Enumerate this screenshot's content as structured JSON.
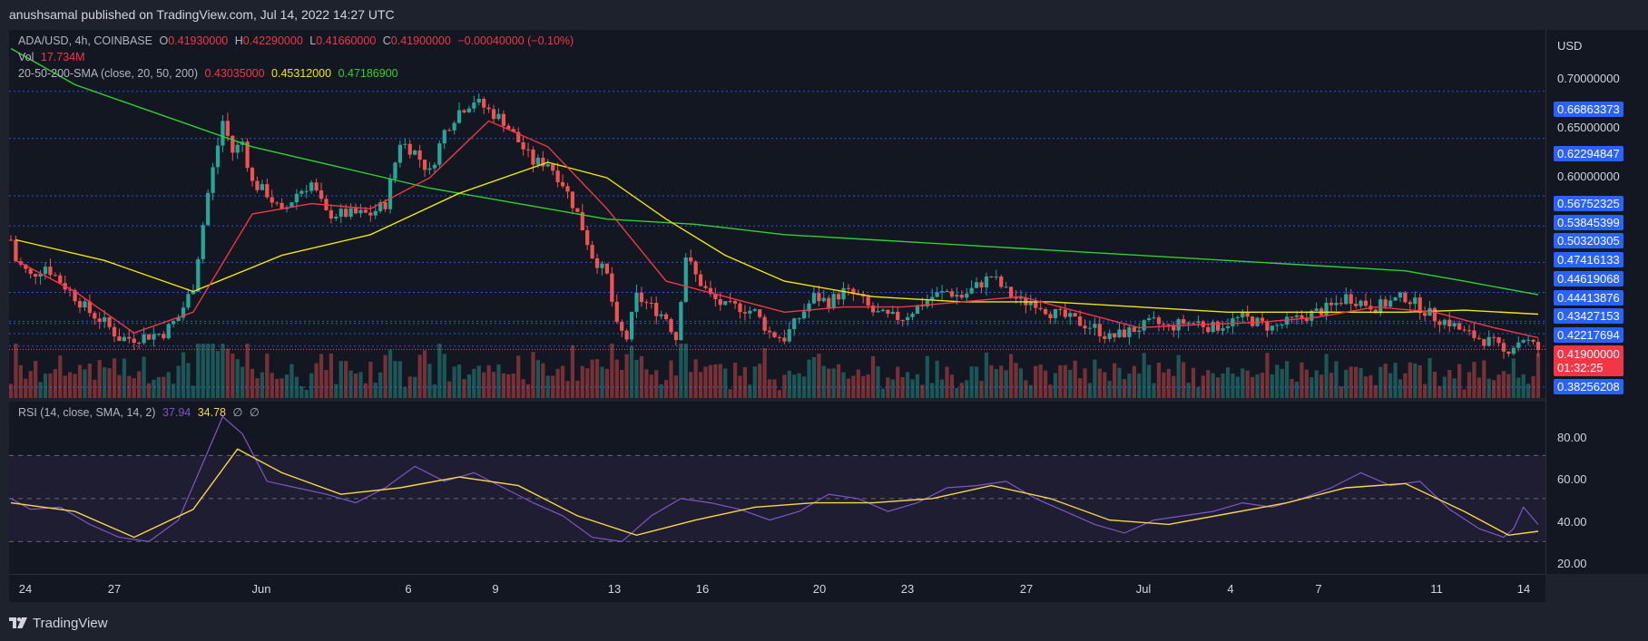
{
  "header": {
    "published_by": "anushsamal published on TradingView.com, Jul 14, 2022 14:27 UTC"
  },
  "legend": {
    "symbol": "ADA/USD, 4h, COINBASE",
    "open_label": "O",
    "open": "0.41930000",
    "high_label": "H",
    "high": "0.42290000",
    "low_label": "L",
    "low": "0.41660000",
    "close_label": "C",
    "close": "0.41900000",
    "change": "−0.00040000 (−0.10%)",
    "vol_label": "Vol",
    "vol": "17.734M",
    "sma_label": "20-50-200-SMA (close, 20, 50, 200)",
    "sma20": "0.43035000",
    "sma50": "0.45312000",
    "sma200": "0.47186900"
  },
  "rsi_legend": {
    "label": "RSI (14, close, SMA, 14, 2)",
    "rsi": "37.94",
    "rsi_sma": "34.78",
    "extra1": "∅",
    "extra2": "∅"
  },
  "price_axis": {
    "unit": "USD",
    "ticks": [
      "0.70000000",
      "0.65000000",
      "0.60000000"
    ],
    "labels": [
      "0.66863373",
      "0.62294847",
      "0.56752325",
      "0.53845399",
      "0.50320305",
      "0.47416133",
      "0.44619068",
      "0.44413876",
      "0.43427153",
      "0.42217694",
      "0.38256208"
    ],
    "last_price": "0.41900000",
    "countdown": "01:32:25",
    "rsi_ticks": [
      "80.00",
      "60.00",
      "40.00",
      "20.00"
    ]
  },
  "time_axis": {
    "labels": [
      "24",
      "27",
      "Jun",
      "6",
      "9",
      "13",
      "16",
      "20",
      "23",
      "27",
      "Jul",
      "4",
      "7",
      "11",
      "14"
    ]
  },
  "footer": {
    "brand": "TradingView"
  },
  "colors": {
    "up": "#26a69a",
    "down": "#ef5350",
    "sma20": "#f23645",
    "sma50": "#f0e60a",
    "sma200": "#30d030",
    "rsi": "#7e57c2",
    "rsi_sma": "#f5d64a",
    "hline": "#2962ff"
  },
  "chart_data": {
    "type": "candlestick",
    "interval": "4h",
    "symbol": "ADA/USD",
    "ylim": [
      0.372,
      0.728
    ],
    "grid": false,
    "horizontal_levels": [
      0.66863373,
      0.62294847,
      0.56752325,
      0.53845399,
      0.50320305,
      0.47416133,
      0.44619068,
      0.44413876,
      0.43427153,
      0.42217694,
      0.38256208
    ],
    "price_path": [
      [
        "May 23 20:00",
        0.525
      ],
      [
        "May 24 00:00",
        0.505
      ],
      [
        "May 24 12:00",
        0.49
      ],
      [
        "May 25 00:00",
        0.5
      ],
      [
        "May 26 00:00",
        0.47
      ],
      [
        "May 26 12:00",
        0.455
      ],
      [
        "May 27 00:00",
        0.445
      ],
      [
        "May 27 12:00",
        0.43
      ],
      [
        "May 28 00:00",
        0.43
      ],
      [
        "May 29 00:00",
        0.435
      ],
      [
        "May 29 12:00",
        0.45
      ],
      [
        "May 30 00:00",
        0.48
      ],
      [
        "May 30 12:00",
        0.57
      ],
      [
        "May 31 00:00",
        0.64
      ],
      [
        "May 31 08:00",
        0.61
      ],
      [
        "May 31 16:00",
        0.62
      ],
      [
        "Jun 1 00:00",
        0.58
      ],
      [
        "Jun 1 12:00",
        0.57
      ],
      [
        "Jun 2 00:00",
        0.55
      ],
      [
        "Jun 2 12:00",
        0.57
      ],
      [
        "Jun 3 00:00",
        0.58
      ],
      [
        "Jun 3 12:00",
        0.55
      ],
      [
        "Jun 4 00:00",
        0.55
      ],
      [
        "Jun 5 00:00",
        0.55
      ],
      [
        "Jun 5 12:00",
        0.56
      ],
      [
        "Jun 6 00:00",
        0.62
      ],
      [
        "Jun 6 12:00",
        0.61
      ],
      [
        "Jun 7 00:00",
        0.59
      ],
      [
        "Jun 7 12:00",
        0.63
      ],
      [
        "Jun 8 00:00",
        0.65
      ],
      [
        "Jun 8 12:00",
        0.66
      ],
      [
        "Jun 9 00:00",
        0.65
      ],
      [
        "Jun 9 12:00",
        0.64
      ],
      [
        "Jun 10 00:00",
        0.62
      ],
      [
        "Jun 10 12:00",
        0.6
      ],
      [
        "Jun 11 00:00",
        0.6
      ],
      [
        "Jun 11 12:00",
        0.58
      ],
      [
        "Jun 12 00:00",
        0.55
      ],
      [
        "Jun 12 12:00",
        0.51
      ],
      [
        "Jun 13 00:00",
        0.49
      ],
      [
        "Jun 13 08:00",
        0.44
      ],
      [
        "Jun 13 16:00",
        0.43
      ],
      [
        "Jun 14 00:00",
        0.47
      ],
      [
        "Jun 14 12:00",
        0.46
      ],
      [
        "Jun 15 00:00",
        0.45
      ],
      [
        "Jun 15 08:00",
        0.43
      ],
      [
        "Jun 15 16:00",
        0.51
      ],
      [
        "Jun 16 00:00",
        0.49
      ],
      [
        "Jun 16 12:00",
        0.47
      ],
      [
        "Jun 17 00:00",
        0.46
      ],
      [
        "Jun 17 12:00",
        0.46
      ],
      [
        "Jun 18 00:00",
        0.455
      ],
      [
        "Jun 18 12:00",
        0.435
      ],
      [
        "Jun 19 00:00",
        0.43
      ],
      [
        "Jun 19 12:00",
        0.45
      ],
      [
        "Jun 20 00:00",
        0.47
      ],
      [
        "Jun 20 12:00",
        0.465
      ],
      [
        "Jun 21 00:00",
        0.475
      ],
      [
        "Jun 21 12:00",
        0.47
      ],
      [
        "Jun 22 00:00",
        0.455
      ],
      [
        "Jun 22 12:00",
        0.45
      ],
      [
        "Jun 23 00:00",
        0.45
      ],
      [
        "Jun 23 12:00",
        0.46
      ],
      [
        "Jun 24 00:00",
        0.47
      ],
      [
        "Jun 24 12:00",
        0.475
      ],
      [
        "Jun 25 00:00",
        0.47
      ],
      [
        "Jun 25 12:00",
        0.48
      ],
      [
        "Jun 26 00:00",
        0.49
      ],
      [
        "Jun 26 12:00",
        0.475
      ],
      [
        "Jun 27 00:00",
        0.465
      ],
      [
        "Jun 27 12:00",
        0.465
      ],
      [
        "Jun 28 00:00",
        0.455
      ],
      [
        "Jun 28 12:00",
        0.45
      ],
      [
        "Jun 29 00:00",
        0.445
      ],
      [
        "Jun 29 12:00",
        0.44
      ],
      [
        "Jun 30 00:00",
        0.43
      ],
      [
        "Jun 30 12:00",
        0.435
      ],
      [
        "Jul 1 00:00",
        0.44
      ],
      [
        "Jul 1 12:00",
        0.445
      ],
      [
        "Jul 2 00:00",
        0.44
      ],
      [
        "Jul 2 12:00",
        0.445
      ],
      [
        "Jul 3 00:00",
        0.445
      ],
      [
        "Jul 3 12:00",
        0.44
      ],
      [
        "Jul 4 00:00",
        0.445
      ],
      [
        "Jul 4 12:00",
        0.45
      ],
      [
        "Jul 5 00:00",
        0.445
      ],
      [
        "Jul 5 12:00",
        0.44
      ],
      [
        "Jul 6 00:00",
        0.445
      ],
      [
        "Jul 6 12:00",
        0.45
      ],
      [
        "Jul 7 00:00",
        0.455
      ],
      [
        "Jul 7 12:00",
        0.46
      ],
      [
        "Jul 8 00:00",
        0.47
      ],
      [
        "Jul 8 12:00",
        0.465
      ],
      [
        "Jul 9 00:00",
        0.46
      ],
      [
        "Jul 9 12:00",
        0.465
      ],
      [
        "Jul 10 00:00",
        0.47
      ],
      [
        "Jul 10 12:00",
        0.46
      ],
      [
        "Jul 11 00:00",
        0.45
      ],
      [
        "Jul 11 12:00",
        0.445
      ],
      [
        "Jul 12 00:00",
        0.435
      ],
      [
        "Jul 12 12:00",
        0.43
      ],
      [
        "Jul 13 00:00",
        0.425
      ],
      [
        "Jul 13 08:00",
        0.415
      ],
      [
        "Jul 13 12:00",
        0.42
      ],
      [
        "Jul 14 00:00",
        0.43
      ],
      [
        "Jul 14 12:00",
        0.419
      ]
    ],
    "sma20_path": [
      [
        "May 24 00:00",
        0.505
      ],
      [
        "May 26 00:00",
        0.475
      ],
      [
        "May 28 00:00",
        0.435
      ],
      [
        "May 30 00:00",
        0.455
      ],
      [
        "Jun 1 00:00",
        0.55
      ],
      [
        "Jun 3 00:00",
        0.56
      ],
      [
        "Jun 5 00:00",
        0.555
      ],
      [
        "Jun 7 00:00",
        0.585
      ],
      [
        "Jun 9 00:00",
        0.64
      ],
      [
        "Jun 11 00:00",
        0.615
      ],
      [
        "Jun 13 00:00",
        0.555
      ],
      [
        "Jun 15 00:00",
        0.485
      ],
      [
        "Jun 17 00:00",
        0.47
      ],
      [
        "Jun 19 00:00",
        0.455
      ],
      [
        "Jun 21 00:00",
        0.46
      ],
      [
        "Jun 23 00:00",
        0.46
      ],
      [
        "Jun 25 00:00",
        0.465
      ],
      [
        "Jun 27 00:00",
        0.47
      ],
      [
        "Jun 29 00:00",
        0.455
      ],
      [
        "Jul 1 00:00",
        0.44
      ],
      [
        "Jul 3 00:00",
        0.443
      ],
      [
        "Jul 5 00:00",
        0.445
      ],
      [
        "Jul 7 00:00",
        0.45
      ],
      [
        "Jul 9 00:00",
        0.46
      ],
      [
        "Jul 11 00:00",
        0.455
      ],
      [
        "Jul 13 00:00",
        0.44
      ],
      [
        "Jul 14 12:00",
        0.43035
      ]
    ],
    "sma50_path": [
      [
        "May 24 00:00",
        0.525
      ],
      [
        "May 27 00:00",
        0.505
      ],
      [
        "May 30 00:00",
        0.475
      ],
      [
        "Jun 2 00:00",
        0.51
      ],
      [
        "Jun 5 00:00",
        0.53
      ],
      [
        "Jun 8 00:00",
        0.57
      ],
      [
        "Jun 11 00:00",
        0.6
      ],
      [
        "Jun 13 00:00",
        0.585
      ],
      [
        "Jun 15 00:00",
        0.545
      ],
      [
        "Jun 17 00:00",
        0.51
      ],
      [
        "Jun 19 00:00",
        0.485
      ],
      [
        "Jun 22 00:00",
        0.47
      ],
      [
        "Jun 25 00:00",
        0.465
      ],
      [
        "Jun 28 00:00",
        0.465
      ],
      [
        "Jul 1 00:00",
        0.46
      ],
      [
        "Jul 4 00:00",
        0.455
      ],
      [
        "Jul 7 00:00",
        0.455
      ],
      [
        "Jul 10 00:00",
        0.455
      ],
      [
        "Jul 12 00:00",
        0.457
      ],
      [
        "Jul 14 12:00",
        0.45312
      ]
    ],
    "sma200_path": [
      [
        "May 23 20:00",
        0.71
      ],
      [
        "May 26 00:00",
        0.675
      ],
      [
        "May 29 00:00",
        0.645
      ],
      [
        "Jun 1 00:00",
        0.615
      ],
      [
        "Jun 4 00:00",
        0.595
      ],
      [
        "Jun 7 00:00",
        0.575
      ],
      [
        "Jun 10 00:00",
        0.56
      ],
      [
        "Jun 13 00:00",
        0.545
      ],
      [
        "Jun 16 00:00",
        0.54
      ],
      [
        "Jun 19 00:00",
        0.53
      ],
      [
        "Jun 22 00:00",
        0.525
      ],
      [
        "Jun 25 00:00",
        0.52
      ],
      [
        "Jun 28 00:00",
        0.515
      ],
      [
        "Jul 1 00:00",
        0.51
      ],
      [
        "Jul 4 00:00",
        0.505
      ],
      [
        "Jul 7 00:00",
        0.5
      ],
      [
        "Jul 10 00:00",
        0.495
      ],
      [
        "Jul 12 00:00",
        0.485
      ],
      [
        "Jul 14 12:00",
        0.471869
      ]
    ],
    "rsi": {
      "ylim": [
        15,
        95
      ],
      "bands": [
        30,
        50,
        70
      ],
      "rsi_path": [
        [
          "May 23 20:00",
          50
        ],
        [
          "May 24 12:00",
          45
        ],
        [
          "May 25 12:00",
          46
        ],
        [
          "May 26 12:00",
          38
        ],
        [
          "May 27 12:00",
          32
        ],
        [
          "May 28 12:00",
          30
        ],
        [
          "May 29 12:00",
          40
        ],
        [
          "May 30 12:00",
          72
        ],
        [
          "May 31 00:00",
          88
        ],
        [
          "May 31 16:00",
          80
        ],
        [
          "Jun 1 12:00",
          58
        ],
        [
          "Jun 2 12:00",
          55
        ],
        [
          "Jun 3 12:00",
          52
        ],
        [
          "Jun 4 12:00",
          48
        ],
        [
          "Jun 5 12:00",
          55
        ],
        [
          "Jun 6 12:00",
          65
        ],
        [
          "Jun 7 12:00",
          58
        ],
        [
          "Jun 8 12:00",
          62
        ],
        [
          "Jun 9 12:00",
          55
        ],
        [
          "Jun 10 12:00",
          48
        ],
        [
          "Jun 11 12:00",
          42
        ],
        [
          "Jun 12 12:00",
          32
        ],
        [
          "Jun 13 12:00",
          30
        ],
        [
          "Jun 14 12:00",
          42
        ],
        [
          "Jun 15 12:00",
          50
        ],
        [
          "Jun 16 12:00",
          48
        ],
        [
          "Jun 17 12:00",
          45
        ],
        [
          "Jun 18 12:00",
          40
        ],
        [
          "Jun 19 12:00",
          44
        ],
        [
          "Jun 20 12:00",
          52
        ],
        [
          "Jun 21 12:00",
          50
        ],
        [
          "Jun 22 12:00",
          44
        ],
        [
          "Jun 23 12:00",
          48
        ],
        [
          "Jun 24 12:00",
          55
        ],
        [
          "Jun 25 12:00",
          56
        ],
        [
          "Jun 26 12:00",
          58
        ],
        [
          "Jun 27 12:00",
          50
        ],
        [
          "Jun 28 12:00",
          44
        ],
        [
          "Jun 29 12:00",
          38
        ],
        [
          "Jun 30 12:00",
          34
        ],
        [
          "Jul 1 12:00",
          40
        ],
        [
          "Jul 2 12:00",
          42
        ],
        [
          "Jul 3 12:00",
          44
        ],
        [
          "Jul 4 12:00",
          48
        ],
        [
          "Jul 5 12:00",
          46
        ],
        [
          "Jul 6 12:00",
          50
        ],
        [
          "Jul 7 12:00",
          55
        ],
        [
          "Jul 8 12:00",
          62
        ],
        [
          "Jul 9 12:00",
          56
        ],
        [
          "Jul 10 12:00",
          58
        ],
        [
          "Jul 11 12:00",
          45
        ],
        [
          "Jul 12 12:00",
          36
        ],
        [
          "Jul 13 08:00",
          32
        ],
        [
          "Jul 13 16:00",
          36
        ],
        [
          "Jul 14 00:00",
          46
        ],
        [
          "Jul 14 12:00",
          37.94
        ]
      ],
      "rsi_sma_path": [
        [
          "May 23 20:00",
          48
        ],
        [
          "May 26 00:00",
          44
        ],
        [
          "May 28 00:00",
          32
        ],
        [
          "May 30 00:00",
          45
        ],
        [
          "May 31 12:00",
          73
        ],
        [
          "Jun 2 00:00",
          62
        ],
        [
          "Jun 4 00:00",
          52
        ],
        [
          "Jun 6 00:00",
          55
        ],
        [
          "Jun 8 00:00",
          60
        ],
        [
          "Jun 10 00:00",
          56
        ],
        [
          "Jun 12 00:00",
          42
        ],
        [
          "Jun 14 00:00",
          33
        ],
        [
          "Jun 16 00:00",
          40
        ],
        [
          "Jun 18 00:00",
          46
        ],
        [
          "Jun 20 00:00",
          48
        ],
        [
          "Jun 22 00:00",
          48
        ],
        [
          "Jun 24 00:00",
          50
        ],
        [
          "Jun 26 00:00",
          56
        ],
        [
          "Jun 28 00:00",
          50
        ],
        [
          "Jun 30 00:00",
          40
        ],
        [
          "Jul 2 00:00",
          38
        ],
        [
          "Jul 4 00:00",
          43
        ],
        [
          "Jul 6 00:00",
          48
        ],
        [
          "Jul 8 00:00",
          55
        ],
        [
          "Jul 10 00:00",
          57
        ],
        [
          "Jul 12 00:00",
          44
        ],
        [
          "Jul 13 12:00",
          33
        ],
        [
          "Jul 14 12:00",
          34.78
        ]
      ]
    }
  }
}
